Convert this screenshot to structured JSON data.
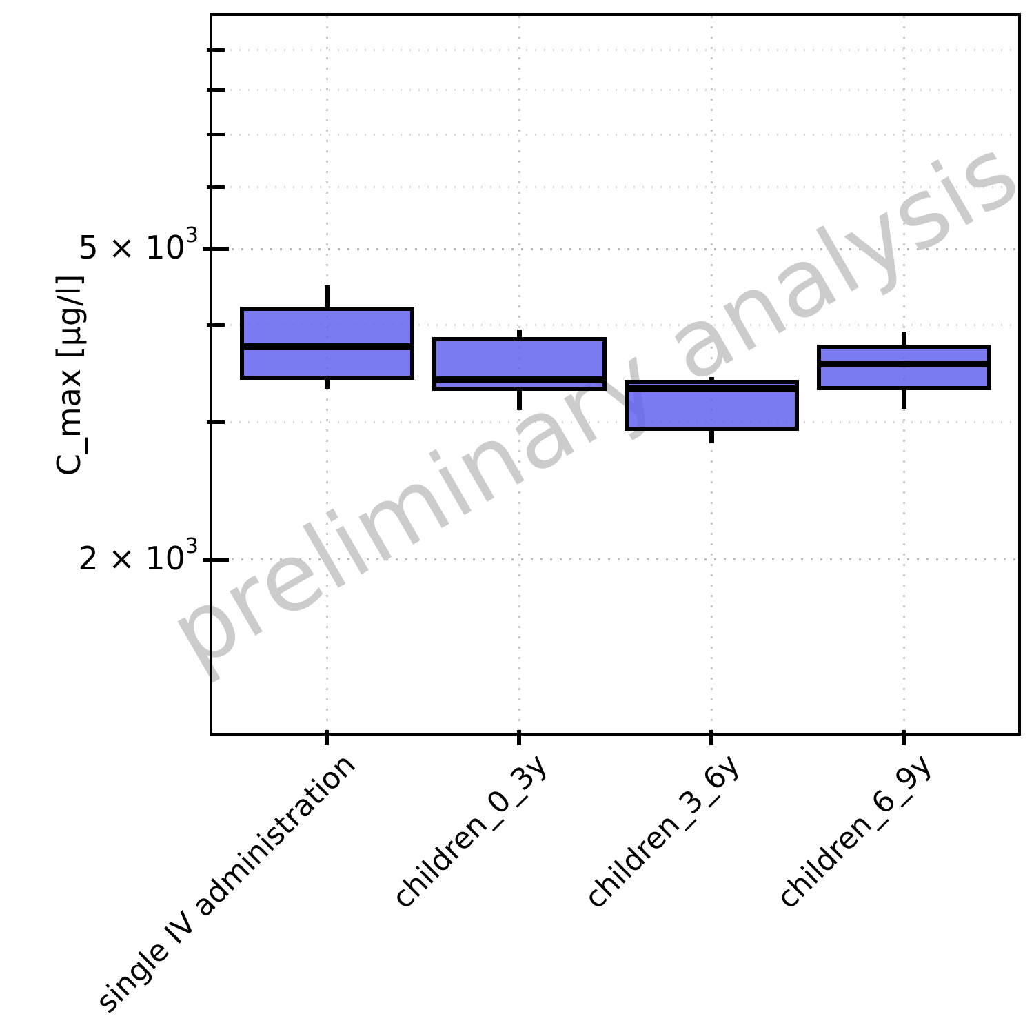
{
  "figure": {
    "background": "#ffffff",
    "watermark": {
      "text": "preliminary analysis",
      "color": "#cccccc",
      "angle_deg": -30
    }
  },
  "y_axis": {
    "label": "C_max [µg/l]",
    "scale": "log10",
    "ticks": [
      {
        "value": 9000,
        "major": false,
        "label": null
      },
      {
        "value": 8000,
        "major": false,
        "label": null
      },
      {
        "value": 7000,
        "major": false,
        "label": null
      },
      {
        "value": 6000,
        "major": false,
        "label": null
      },
      {
        "value": 5000,
        "major": true,
        "label": {
          "base": "5 × 10",
          "exp": "3"
        }
      },
      {
        "value": 4000,
        "major": false,
        "label": null
      },
      {
        "value": 3000,
        "major": false,
        "label": null
      },
      {
        "value": 2000,
        "major": true,
        "label": {
          "base": "2 × 10",
          "exp": "3"
        }
      }
    ]
  },
  "x_axis": {
    "tick_label_angle_deg": -45,
    "categories": [
      "single IV administration",
      "children_0_3y",
      "children_3_6y",
      "children_6_9y"
    ]
  },
  "chart_data": {
    "type": "boxplot",
    "title": "",
    "xlabel": "",
    "ylabel": "C_max [µg/l]",
    "yscale": "log10",
    "ylim": [
      1200,
      9950
    ],
    "grid": "dotted major+minor horizontal, dotted vertical at categories",
    "legend": "none",
    "watermark": "preliminary analysis",
    "categories": [
      "single IV administration",
      "children_0_3y",
      "children_3_6y",
      "children_6_9y"
    ],
    "series": [
      {
        "name": "single IV administration",
        "whisker_low": 3310,
        "q1": 3400,
        "median": 3750,
        "q3": 4220,
        "whisker_high": 4490
      },
      {
        "name": "children_0_3y",
        "whisker_low": 3110,
        "q1": 3290,
        "median": 3400,
        "q3": 3860,
        "whisker_high": 3940
      },
      {
        "name": "children_3_6y",
        "whisker_low": 2820,
        "q1": 2925,
        "median": 3310,
        "q3": 3400,
        "whisker_high": 3430
      },
      {
        "name": "children_6_9y",
        "whisker_low": 3120,
        "q1": 3300,
        "median": 3565,
        "q3": 3775,
        "whisker_high": 3920
      }
    ],
    "style": {
      "box_fill": "#5e5ded",
      "box_fill_alpha": 0.82,
      "box_fill_effective": "#7b7af0",
      "box_edge": "#000000",
      "median_color": "#000000",
      "whisker_color": "#000000"
    }
  }
}
